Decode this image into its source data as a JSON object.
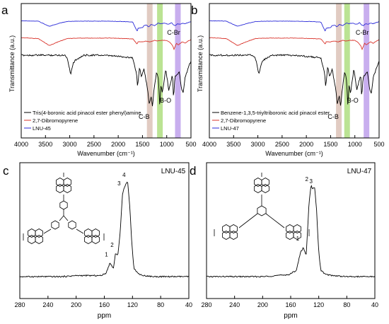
{
  "panel_letters": [
    "a",
    "b",
    "c",
    "d"
  ],
  "colors": {
    "black": "#000000",
    "red": "#d9332b",
    "blue": "#2a2ad8",
    "band_cb": "#c9a090",
    "band_bo": "#84cc3a",
    "band_cbr": "#9b6be0"
  },
  "chart_data": [
    {
      "panel": "a",
      "type": "line",
      "xlabel": "Wavenumber (cm⁻¹)",
      "ylabel": "Transmittance (a.u.)",
      "xlim": [
        4000,
        500
      ],
      "reversed_x": true,
      "xticks": [
        "4000",
        "3500",
        "3000",
        "2500",
        "2000",
        "1500",
        "1000",
        "500"
      ],
      "annotations": [
        "C-Br",
        "C-B",
        "B-O"
      ],
      "legend": [
        "Tris(4-boronic acid pinacol ester phenyl)amine",
        "2,7-Dibromopyrene",
        "LNU-45"
      ],
      "legend_position": "bottom-left",
      "series": [
        {
          "name": "LNU-45",
          "color": "#2a2ad8",
          "offset": 0.9,
          "amp": 0.13,
          "x": [
            4000,
            3650,
            3420,
            3200,
            3050,
            2800,
            2500,
            2200,
            1900,
            1700,
            1610,
            1590,
            1500,
            1470,
            1420,
            1370,
            1320,
            1250,
            1180,
            1120,
            1050,
            960,
            900,
            860,
            820,
            780,
            720,
            680,
            620,
            560,
            500
          ],
          "y": [
            0.02,
            0.05,
            0.45,
            0.2,
            0.08,
            0.05,
            0.05,
            0.05,
            0.08,
            0.12,
            0.85,
            0.6,
            0.55,
            0.4,
            0.35,
            0.5,
            0.3,
            0.4,
            0.2,
            0.25,
            0.2,
            0.3,
            0.15,
            0.35,
            0.4,
            0.25,
            0.3,
            0.2,
            0.25,
            0.15,
            0.1
          ]
        },
        {
          "name": "2,7-Dibromopyrene",
          "color": "#d9332b",
          "offset": 0.73,
          "amp": 0.15,
          "x": [
            4000,
            3650,
            3420,
            3200,
            3050,
            2800,
            2500,
            2200,
            1900,
            1700,
            1610,
            1590,
            1500,
            1420,
            1340,
            1250,
            1180,
            1100,
            1000,
            930,
            880,
            850,
            800,
            760,
            720,
            680,
            620,
            560,
            500
          ],
          "y": [
            0.02,
            0.08,
            0.55,
            0.25,
            0.08,
            0.05,
            0.05,
            0.05,
            0.08,
            0.1,
            0.45,
            0.3,
            0.3,
            0.25,
            0.3,
            0.2,
            0.25,
            0.2,
            0.2,
            0.35,
            0.55,
            0.8,
            0.4,
            0.5,
            0.4,
            0.3,
            0.4,
            0.25,
            0.15
          ]
        },
        {
          "name": "Tris(4-boronic acid pinacol ester phenyl)amine",
          "color": "#000000",
          "offset": 0.55,
          "amp": 0.55,
          "x": [
            4000,
            3500,
            3100,
            3050,
            2980,
            2930,
            2870,
            2700,
            2400,
            2000,
            1700,
            1620,
            1600,
            1560,
            1520,
            1470,
            1440,
            1400,
            1360,
            1320,
            1290,
            1270,
            1210,
            1170,
            1145,
            1120,
            1090,
            1020,
            980,
            960,
            880,
            860,
            830,
            780,
            740,
            700,
            660,
            620,
            560,
            500
          ],
          "y": [
            0.0,
            0.0,
            0.0,
            0.05,
            0.35,
            0.15,
            0.08,
            0.0,
            0.0,
            0.02,
            0.05,
            0.35,
            0.6,
            0.2,
            0.4,
            0.25,
            0.4,
            0.6,
            0.9,
            0.75,
            0.95,
            0.7,
            0.3,
            0.45,
            0.92,
            0.55,
            0.7,
            0.25,
            0.5,
            0.65,
            0.35,
            0.8,
            0.4,
            0.35,
            0.3,
            0.6,
            0.7,
            0.4,
            0.25,
            0.1
          ]
        }
      ],
      "bands": [
        {
          "label": "C-B",
          "x": 1350,
          "color": "#c9a090"
        },
        {
          "label": "B-O",
          "x": 1140,
          "color": "#84cc3a"
        },
        {
          "label": "C-Br",
          "x": 770,
          "color": "#9b6be0"
        }
      ]
    },
    {
      "panel": "b",
      "type": "line",
      "xlabel": "Wavenumber (cm⁻¹)",
      "ylabel": "Transmittance (a.u.)",
      "xlim": [
        4000,
        500
      ],
      "reversed_x": true,
      "xticks": [
        "4000",
        "3500",
        "3000",
        "2500",
        "2000",
        "1500",
        "1000",
        "500"
      ],
      "annotations": [
        "C-Br",
        "C-B",
        "B-O"
      ],
      "legend": [
        "Benzene-1,3,5-triyltriboronic acid pinacol ester",
        "2,7-Dibromopyrene",
        "LNU-47"
      ],
      "legend_position": "bottom-left",
      "series": [
        {
          "name": "LNU-47",
          "color": "#2a2ad8",
          "offset": 0.9,
          "amp": 0.13,
          "x": [
            4000,
            3650,
            3420,
            3200,
            3050,
            2800,
            2500,
            2200,
            1900,
            1700,
            1610,
            1590,
            1500,
            1470,
            1420,
            1370,
            1320,
            1250,
            1180,
            1120,
            1050,
            960,
            900,
            860,
            820,
            780,
            720,
            680,
            620,
            560,
            500
          ],
          "y": [
            0.02,
            0.05,
            0.45,
            0.2,
            0.08,
            0.05,
            0.05,
            0.05,
            0.08,
            0.12,
            0.85,
            0.6,
            0.55,
            0.4,
            0.35,
            0.5,
            0.3,
            0.4,
            0.2,
            0.25,
            0.2,
            0.3,
            0.15,
            0.35,
            0.4,
            0.25,
            0.3,
            0.2,
            0.25,
            0.15,
            0.1
          ]
        },
        {
          "name": "2,7-Dibromopyrene",
          "color": "#d9332b",
          "offset": 0.73,
          "amp": 0.15,
          "x": [
            4000,
            3650,
            3420,
            3200,
            3050,
            2800,
            2500,
            2200,
            1900,
            1700,
            1610,
            1590,
            1500,
            1420,
            1340,
            1250,
            1180,
            1100,
            1000,
            930,
            880,
            850,
            800,
            760,
            720,
            680,
            620,
            560,
            500
          ],
          "y": [
            0.02,
            0.08,
            0.55,
            0.25,
            0.08,
            0.05,
            0.05,
            0.05,
            0.08,
            0.1,
            0.45,
            0.3,
            0.3,
            0.25,
            0.3,
            0.2,
            0.25,
            0.2,
            0.2,
            0.35,
            0.55,
            0.8,
            0.4,
            0.5,
            0.4,
            0.3,
            0.4,
            0.25,
            0.15
          ]
        },
        {
          "name": "Benzene-1,3,5-triyltriboronic acid pinacol ester",
          "color": "#000000",
          "offset": 0.55,
          "amp": 0.55,
          "x": [
            4000,
            3500,
            3100,
            3050,
            2980,
            2930,
            2870,
            2700,
            2400,
            2000,
            1700,
            1620,
            1600,
            1560,
            1520,
            1470,
            1440,
            1400,
            1360,
            1320,
            1290,
            1270,
            1210,
            1170,
            1145,
            1120,
            1090,
            1020,
            980,
            960,
            880,
            860,
            830,
            780,
            740,
            700,
            660,
            620,
            560,
            500
          ],
          "y": [
            0.0,
            0.0,
            0.0,
            0.05,
            0.35,
            0.15,
            0.08,
            0.0,
            0.0,
            0.02,
            0.05,
            0.35,
            0.6,
            0.2,
            0.4,
            0.25,
            0.4,
            0.6,
            0.9,
            0.75,
            0.95,
            0.7,
            0.3,
            0.45,
            0.92,
            0.55,
            0.7,
            0.25,
            0.5,
            0.65,
            0.35,
            0.8,
            0.4,
            0.35,
            0.3,
            0.6,
            0.7,
            0.4,
            0.25,
            0.1
          ]
        }
      ],
      "bands": [
        {
          "label": "C-B",
          "x": 1330,
          "color": "#c9a090"
        },
        {
          "label": "B-O",
          "x": 1160,
          "color": "#84cc3a"
        },
        {
          "label": "C-Br",
          "x": 760,
          "color": "#9b6be0"
        }
      ]
    },
    {
      "panel": "c",
      "type": "line",
      "title": "LNU-45",
      "xlabel": "ppm",
      "ylabel": "",
      "xlim": [
        280,
        40
      ],
      "reversed_x": true,
      "xticks": [
        "280",
        "240",
        "200",
        "160",
        "120",
        "80",
        "40"
      ],
      "peak_labels": [
        {
          "text": "1",
          "x": 152,
          "y": 0.2
        },
        {
          "text": "2",
          "x": 144,
          "y": 0.29
        },
        {
          "text": "3",
          "x": 134,
          "y": 0.88
        },
        {
          "text": "4",
          "x": 127,
          "y": 0.96
        }
      ],
      "series": [
        {
          "name": "LNU-45",
          "color": "#000000",
          "x": [
            280,
            250,
            220,
            200,
            180,
            165,
            158,
            152,
            150,
            147,
            144,
            141,
            138,
            134,
            130,
            127,
            124,
            121,
            118,
            112,
            105,
            90,
            70,
            55,
            40
          ],
          "y": [
            0.02,
            0.02,
            0.02,
            0.03,
            0.03,
            0.03,
            0.05,
            0.15,
            0.13,
            0.1,
            0.25,
            0.22,
            0.4,
            0.82,
            0.9,
            0.93,
            0.7,
            0.35,
            0.1,
            0.05,
            0.03,
            0.02,
            0.02,
            0.02,
            0.02
          ]
        }
      ]
    },
    {
      "panel": "d",
      "type": "line",
      "title": "LNU-47",
      "xlabel": "ppm",
      "ylabel": "",
      "xlim": [
        280,
        40
      ],
      "reversed_x": true,
      "xticks": [
        "280",
        "240",
        "200",
        "160",
        "120",
        "80",
        "40"
      ],
      "peak_labels": [
        {
          "text": "1",
          "x": 145,
          "y": 0.35
        },
        {
          "text": "2",
          "x": 132,
          "y": 0.92
        },
        {
          "text": "3",
          "x": 126,
          "y": 0.9
        }
      ],
      "series": [
        {
          "name": "LNU-47",
          "color": "#000000",
          "x": [
            280,
            250,
            220,
            200,
            180,
            162,
            152,
            146,
            142,
            138,
            134,
            131,
            129,
            126,
            123,
            120,
            117,
            110,
            100,
            80,
            60,
            40
          ],
          "y": [
            0.02,
            0.02,
            0.02,
            0.02,
            0.03,
            0.04,
            0.08,
            0.25,
            0.3,
            0.22,
            0.7,
            0.9,
            0.85,
            0.88,
            0.65,
            0.25,
            0.08,
            0.04,
            0.03,
            0.02,
            0.02,
            0.02
          ]
        }
      ]
    }
  ]
}
